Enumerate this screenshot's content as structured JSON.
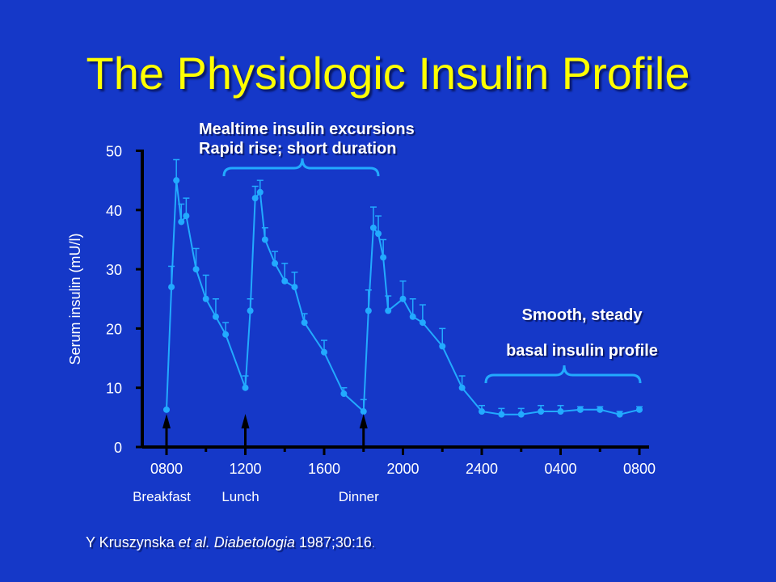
{
  "slide": {
    "title": "The Physiologic Insulin Profile",
    "meal_note_line1": "Mealtime insulin excursions",
    "meal_note_line2": "Rapid rise; short duration",
    "basal_note_line1": "Smooth, steady",
    "basal_note_line2": "basal insulin profile",
    "citation_author": "Y Kruszynska ",
    "citation_etal": "et al.",
    "citation_journal": "Diabetologia",
    "citation_ref": " 1987;30:16",
    "citation_period": "."
  },
  "colors": {
    "background": "#1538c8",
    "title": "#ffff00",
    "series": "#22aaff",
    "axis": "#000000",
    "text": "#ffffff"
  },
  "chart_data": {
    "type": "line",
    "title": "",
    "xlabel": "",
    "ylabel": "Serum insulin (mU/l)",
    "ylim": [
      0,
      50
    ],
    "yticks": [
      0,
      10,
      20,
      30,
      40,
      50
    ],
    "x_tick_hours": [
      0,
      4,
      8,
      12,
      16,
      20,
      24
    ],
    "x_tick_labels": [
      "0800",
      "1200",
      "1600",
      "2000",
      "2400",
      "0400",
      "0800"
    ],
    "x_tick_note": "hours elapsed from 0800 on first day",
    "meals": [
      {
        "label": "Breakfast",
        "hour": 0
      },
      {
        "label": "Lunch",
        "hour": 4
      },
      {
        "label": "Dinner",
        "hour": 10
      }
    ],
    "series": [
      {
        "points": [
          {
            "x": 0.0,
            "y": 6.3,
            "err": 0
          },
          {
            "x": 0.25,
            "y": 27,
            "err": 3.5
          },
          {
            "x": 0.5,
            "y": 45,
            "err": 3.5
          },
          {
            "x": 0.75,
            "y": 38,
            "err": 3
          },
          {
            "x": 1.0,
            "y": 39,
            "err": 3
          },
          {
            "x": 1.5,
            "y": 30,
            "err": 3.5
          },
          {
            "x": 2.0,
            "y": 25,
            "err": 4
          },
          {
            "x": 2.5,
            "y": 22,
            "err": 3
          },
          {
            "x": 3.0,
            "y": 19,
            "err": 2
          },
          {
            "x": 4.0,
            "y": 10,
            "err": 2
          },
          {
            "x": 4.25,
            "y": 23,
            "err": 2
          },
          {
            "x": 4.5,
            "y": 42,
            "err": 2
          },
          {
            "x": 4.75,
            "y": 43,
            "err": 2
          },
          {
            "x": 5.0,
            "y": 35,
            "err": 2
          },
          {
            "x": 5.5,
            "y": 31,
            "err": 2
          },
          {
            "x": 6.0,
            "y": 28,
            "err": 3
          },
          {
            "x": 6.5,
            "y": 27,
            "err": 2.5
          },
          {
            "x": 7.0,
            "y": 21,
            "err": 1.5
          },
          {
            "x": 8.0,
            "y": 16,
            "err": 2
          },
          {
            "x": 9.0,
            "y": 9,
            "err": 1
          },
          {
            "x": 10.0,
            "y": 6,
            "err": 2
          },
          {
            "x": 10.25,
            "y": 23,
            "err": 3.5
          },
          {
            "x": 10.5,
            "y": 37,
            "err": 3.5
          },
          {
            "x": 10.75,
            "y": 36,
            "err": 3
          },
          {
            "x": 11.0,
            "y": 32,
            "err": 3
          },
          {
            "x": 11.25,
            "y": 23,
            "err": 2.5
          },
          {
            "x": 12.0,
            "y": 25,
            "err": 3
          },
          {
            "x": 12.5,
            "y": 22,
            "err": 3
          },
          {
            "x": 13.0,
            "y": 21,
            "err": 3
          },
          {
            "x": 14.0,
            "y": 17,
            "err": 3
          },
          {
            "x": 15.0,
            "y": 10,
            "err": 2
          },
          {
            "x": 16.0,
            "y": 6,
            "err": 1
          },
          {
            "x": 17.0,
            "y": 5.5,
            "err": 1
          },
          {
            "x": 18.0,
            "y": 5.5,
            "err": 1
          },
          {
            "x": 19.0,
            "y": 6,
            "err": 1
          },
          {
            "x": 20.0,
            "y": 6,
            "err": 1
          },
          {
            "x": 21.0,
            "y": 6.3,
            "err": 0.5
          },
          {
            "x": 22.0,
            "y": 6.3,
            "err": 0.5
          },
          {
            "x": 23.0,
            "y": 5.5,
            "err": 0.5
          },
          {
            "x": 24.0,
            "y": 6.3,
            "err": 0.5
          }
        ]
      }
    ]
  }
}
